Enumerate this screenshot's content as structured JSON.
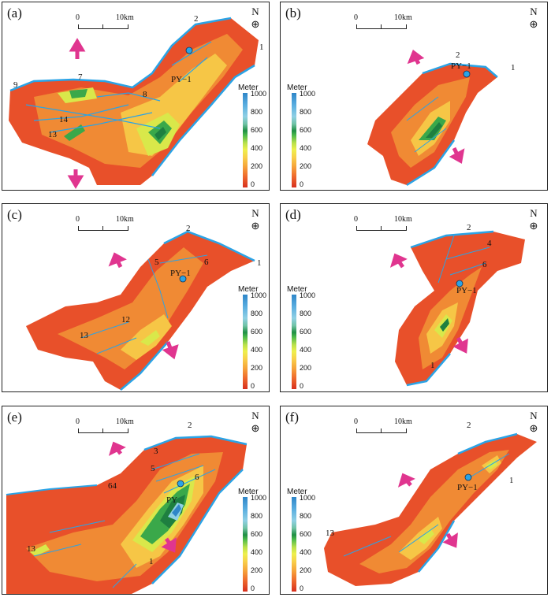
{
  "figure": {
    "scale_bar": {
      "start": "0",
      "end": "10km"
    },
    "north_label": "N",
    "legend": {
      "title": "Meter",
      "ticks": [
        "1000",
        "800",
        "600",
        "400",
        "200",
        "0"
      ]
    },
    "well": "PY−1",
    "colors": {
      "shallow": "#d7301f",
      "mid": "#f8d04a",
      "deep": "#2f86c8",
      "fault": "#2aa3e6",
      "arrow": "#e0358f"
    }
  },
  "panels": [
    {
      "label": "(a)",
      "numbers": [
        "9",
        "7",
        "8",
        "14",
        "13",
        "2",
        "1"
      ],
      "well_label": "PY−1"
    },
    {
      "label": "(b)",
      "numbers": [
        "2",
        "1"
      ],
      "well_label": "PY−1"
    },
    {
      "label": "(c)",
      "numbers": [
        "2",
        "5",
        "6",
        "1",
        "12",
        "13"
      ],
      "well_label": "PY−1"
    },
    {
      "label": "(d)",
      "numbers": [
        "2",
        "4",
        "6",
        "1"
      ],
      "well_label": "PY−1"
    },
    {
      "label": "(e)",
      "numbers": [
        "2",
        "3",
        "5",
        "64",
        "6",
        "13",
        "1"
      ],
      "well_label": "PY"
    },
    {
      "label": "(f)",
      "numbers": [
        "2",
        "1",
        "13"
      ],
      "well_label": "PY−1"
    }
  ]
}
